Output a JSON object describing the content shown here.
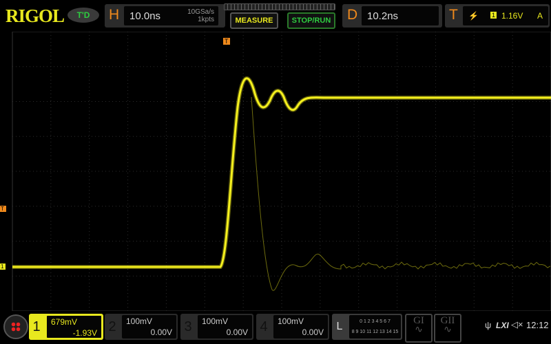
{
  "header": {
    "brand": "RIGOL",
    "trigger_status": "T'D",
    "horizontal": {
      "label": "H",
      "timebase": "10.0ns",
      "sample_rate": "10GSa/s",
      "memory_depth": "1kpts"
    },
    "measure_label": "MEASURE",
    "stop_run_label": "STOP/RUN",
    "delay": {
      "label": "D",
      "value": "10.2ns"
    },
    "trigger": {
      "label": "T",
      "edge_icon": "rising-edge-icon",
      "source": "1",
      "level": "1.16V",
      "mode": "A"
    }
  },
  "channels": [
    {
      "num": "1",
      "scale": "679mV",
      "offset": "-1.93V",
      "active": true,
      "color": "#f5f01e"
    },
    {
      "num": "2",
      "scale": "100mV",
      "offset": "0.00V"
    },
    {
      "num": "3",
      "scale": "100mV",
      "offset": "0.00V"
    },
    {
      "num": "4",
      "scale": "100mV",
      "offset": "0.00V"
    }
  ],
  "logic": {
    "label": "L",
    "row1": "0 1 2 3  4 5 6 7",
    "row2": "8 9 10 11 12 13 14 15"
  },
  "generators": [
    {
      "label": "GI"
    },
    {
      "label": "GII"
    }
  ],
  "status": {
    "lxi": "LXI",
    "time": "12:12"
  },
  "markers": {
    "trigger_pos": "T",
    "ch1_ground": "1",
    "trigger_level": "T"
  }
}
